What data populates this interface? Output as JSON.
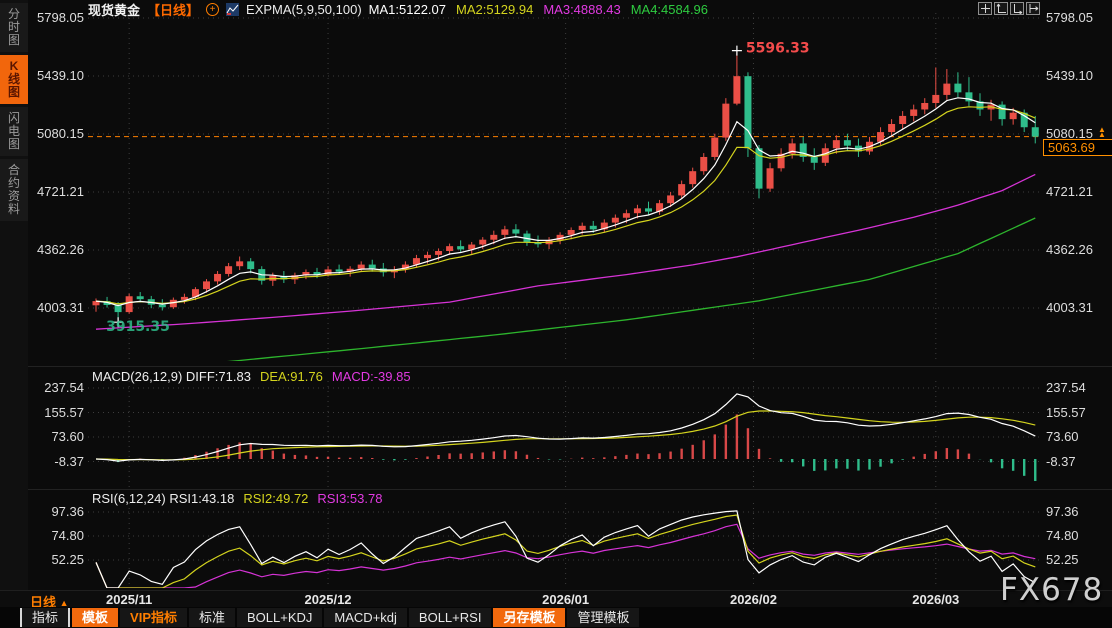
{
  "colors": {
    "up": "#ea4f46",
    "down": "#2fbd8b",
    "ma1": "#ffffff",
    "ma2": "#d4d41e",
    "ma3": "#d633d6",
    "ma4": "#2db52d",
    "accent_orange": "#ff8000",
    "axis_text": "#dedede",
    "grid": "#4a4a4a",
    "hist_up": "#d84848",
    "hist_down": "#2fbd8b",
    "marker_high": "#f34b4b",
    "marker_low": "#2fbd8b"
  },
  "sidebar": {
    "items": [
      {
        "label": "分时图",
        "active": false
      },
      {
        "label": "K线图",
        "active": true
      },
      {
        "label": "闪电图",
        "active": false
      },
      {
        "label": "合约资料",
        "active": false
      }
    ]
  },
  "header": {
    "symbol": "现货黄金",
    "period_tag": "【日线】",
    "indicator_label": "EXPMA(5,9,50,100)",
    "ma_values": [
      {
        "label": "MA1:5122.07",
        "color": "#ffffff"
      },
      {
        "label": "MA2:5129.94",
        "color": "#d4d41e"
      },
      {
        "label": "MA3:4888.43",
        "color": "#e23ae2"
      },
      {
        "label": "MA4:4584.96",
        "color": "#2ecc40"
      }
    ]
  },
  "macd_header": {
    "parts": [
      {
        "text": "MACD(26,12,9) DIFF:71.83",
        "color": "#efefef"
      },
      {
        "text": "DEA:91.76",
        "color": "#d4d41e"
      },
      {
        "text": "MACD:-39.85",
        "color": "#e23ae2"
      }
    ]
  },
  "rsi_header": {
    "parts": [
      {
        "text": "RSI(6,12,24) RSI1:43.18",
        "color": "#efefef"
      },
      {
        "text": "RSI2:49.72",
        "color": "#d4d41e"
      },
      {
        "text": "RSI3:53.78",
        "color": "#e23ae2"
      }
    ]
  },
  "price_tag": {
    "value": "5063.69"
  },
  "period_selector": {
    "label": "日线"
  },
  "bottom_toolbar": {
    "buttons": [
      {
        "label": "指标",
        "style": "bordered"
      },
      {
        "label": "模板",
        "style": "orange-bg"
      },
      {
        "label": "VIP指标",
        "style": "orange-text"
      },
      {
        "label": "标准",
        "style": "plain"
      },
      {
        "label": "BOLL+KDJ",
        "style": "plain"
      },
      {
        "label": "MACD+kdj",
        "style": "plain"
      },
      {
        "label": "BOLL+RSI",
        "style": "plain"
      },
      {
        "label": "另存模板",
        "style": "orange-bg"
      },
      {
        "label": "管理模板",
        "style": "plain"
      }
    ]
  },
  "watermark": "FX678",
  "chart_data": {
    "type": "candlestick",
    "title": "现货黄金【日线】",
    "y_axis": {
      "ticks": [
        "5798.05",
        "5439.10",
        "5080.15",
        "4721.21",
        "4362.26",
        "4003.31"
      ]
    },
    "x_axis": {
      "dates": [
        {
          "label": "2025/11",
          "index": 3
        },
        {
          "label": "2025/12",
          "index": 21
        },
        {
          "label": "2026/01",
          "index": 42.5
        },
        {
          "label": "2026/02",
          "index": 59.5
        },
        {
          "label": "2026/03",
          "index": 76
        }
      ]
    },
    "current_price": 5063.69,
    "markers": {
      "high": {
        "index": 58,
        "price": 5596.33,
        "label": "5596.33"
      },
      "low": {
        "index": 2,
        "price": 3915.35,
        "label": "3915.35"
      }
    },
    "expma_periods": [
      5,
      9,
      50,
      100
    ],
    "candles": [
      [
        4020,
        4062,
        3980,
        4046
      ],
      [
        4046,
        4072,
        4006,
        4022
      ],
      [
        4022,
        4040,
        3915.35,
        3978
      ],
      [
        3978,
        4092,
        3968,
        4076
      ],
      [
        4076,
        4102,
        4038,
        4058
      ],
      [
        4058,
        4078,
        4002,
        4024
      ],
      [
        4024,
        4058,
        3988,
        4008
      ],
      [
        4008,
        4068,
        3998,
        4054
      ],
      [
        4054,
        4092,
        4030,
        4072
      ],
      [
        4072,
        4132,
        4052,
        4120
      ],
      [
        4120,
        4182,
        4098,
        4168
      ],
      [
        4168,
        4232,
        4148,
        4214
      ],
      [
        4214,
        4282,
        4198,
        4262
      ],
      [
        4262,
        4322,
        4238,
        4292
      ],
      [
        4292,
        4312,
        4218,
        4244
      ],
      [
        4244,
        4262,
        4148,
        4172
      ],
      [
        4172,
        4222,
        4140,
        4202
      ],
      [
        4202,
        4232,
        4158,
        4180
      ],
      [
        4180,
        4222,
        4152,
        4206
      ],
      [
        4206,
        4242,
        4182,
        4226
      ],
      [
        4226,
        4252,
        4188,
        4208
      ],
      [
        4208,
        4262,
        4198,
        4242
      ],
      [
        4242,
        4272,
        4208,
        4228
      ],
      [
        4228,
        4262,
        4198,
        4246
      ],
      [
        4246,
        4292,
        4228,
        4272
      ],
      [
        4272,
        4302,
        4228,
        4248
      ],
      [
        4248,
        4282,
        4198,
        4224
      ],
      [
        4224,
        4262,
        4188,
        4242
      ],
      [
        4242,
        4292,
        4222,
        4272
      ],
      [
        4272,
        4332,
        4252,
        4312
      ],
      [
        4312,
        4352,
        4278,
        4332
      ],
      [
        4332,
        4372,
        4298,
        4356
      ],
      [
        4356,
        4402,
        4332,
        4386
      ],
      [
        4386,
        4422,
        4348,
        4366
      ],
      [
        4366,
        4412,
        4338,
        4396
      ],
      [
        4396,
        4442,
        4368,
        4426
      ],
      [
        4426,
        4482,
        4398,
        4456
      ],
      [
        4456,
        4512,
        4428,
        4490
      ],
      [
        4490,
        4522,
        4438,
        4464
      ],
      [
        4464,
        4482,
        4388,
        4410
      ],
      [
        4410,
        4452,
        4378,
        4398
      ],
      [
        4398,
        4442,
        4368,
        4422
      ],
      [
        4422,
        4472,
        4398,
        4456
      ],
      [
        4456,
        4502,
        4428,
        4486
      ],
      [
        4486,
        4532,
        4458,
        4512
      ],
      [
        4512,
        4542,
        4468,
        4490
      ],
      [
        4490,
        4552,
        4470,
        4532
      ],
      [
        4532,
        4582,
        4502,
        4562
      ],
      [
        4562,
        4612,
        4528,
        4590
      ],
      [
        4590,
        4642,
        4558,
        4620
      ],
      [
        4620,
        4662,
        4578,
        4600
      ],
      [
        4600,
        4672,
        4580,
        4652
      ],
      [
        4652,
        4722,
        4628,
        4700
      ],
      [
        4700,
        4792,
        4678,
        4770
      ],
      [
        4770,
        4872,
        4748,
        4850
      ],
      [
        4850,
        4962,
        4828,
        4938
      ],
      [
        4938,
        5082,
        4918,
        5058
      ],
      [
        5058,
        5302,
        5038,
        5268
      ],
      [
        5268,
        5596.33,
        5258,
        5438
      ],
      [
        5438,
        5462,
        4938,
        4992
      ],
      [
        4992,
        5012,
        4682,
        4742
      ],
      [
        4742,
        4902,
        4722,
        4868
      ],
      [
        4868,
        4992,
        4848,
        4958
      ],
      [
        4958,
        5052,
        4928,
        5022
      ],
      [
        5022,
        5062,
        4908,
        4938
      ],
      [
        4938,
        4992,
        4858,
        4902
      ],
      [
        4902,
        5022,
        4882,
        4992
      ],
      [
        4992,
        5072,
        4958,
        5042
      ],
      [
        5042,
        5082,
        4978,
        5008
      ],
      [
        5008,
        5052,
        4938,
        4972
      ],
      [
        4972,
        5062,
        4952,
        5032
      ],
      [
        5032,
        5122,
        5012,
        5092
      ],
      [
        5092,
        5172,
        5062,
        5142
      ],
      [
        5142,
        5222,
        5112,
        5192
      ],
      [
        5192,
        5262,
        5158,
        5232
      ],
      [
        5232,
        5302,
        5202,
        5272
      ],
      [
        5272,
        5492,
        5242,
        5322
      ],
      [
        5322,
        5482,
        5292,
        5392
      ],
      [
        5392,
        5462,
        5308,
        5338
      ],
      [
        5338,
        5432,
        5252,
        5282
      ],
      [
        5282,
        5332,
        5192,
        5232
      ],
      [
        5232,
        5292,
        5162,
        5262
      ],
      [
        5262,
        5282,
        5132,
        5172
      ],
      [
        5172,
        5242,
        5138,
        5212
      ],
      [
        5212,
        5232,
        5092,
        5122
      ],
      [
        5122,
        5192,
        5022,
        5063.69
      ]
    ],
    "ma50_keypoints": [
      [
        0,
        3872
      ],
      [
        8,
        3905
      ],
      [
        16,
        3945
      ],
      [
        24,
        3990
      ],
      [
        32,
        4040
      ],
      [
        40,
        4140
      ],
      [
        48,
        4210
      ],
      [
        54,
        4270
      ],
      [
        58,
        4320
      ],
      [
        62,
        4380
      ],
      [
        66,
        4440
      ],
      [
        70,
        4500
      ],
      [
        74,
        4565
      ],
      [
        78,
        4640
      ],
      [
        82,
        4730
      ],
      [
        85,
        4830
      ]
    ],
    "ma100_keypoints": [
      [
        0,
        3600
      ],
      [
        12,
        3672
      ],
      [
        24,
        3752
      ],
      [
        36,
        3836
      ],
      [
        48,
        3930
      ],
      [
        60,
        4048
      ],
      [
        70,
        4180
      ],
      [
        78,
        4340
      ],
      [
        85,
        4560
      ]
    ],
    "macd_pane": {
      "params": [
        26,
        12,
        9
      ],
      "ticks": [
        "237.54",
        "155.57",
        "73.60",
        "-8.37"
      ]
    },
    "rsi_pane": {
      "params": [
        6,
        12,
        24
      ],
      "ticks": [
        "97.36",
        "74.80",
        "52.25"
      ]
    }
  }
}
